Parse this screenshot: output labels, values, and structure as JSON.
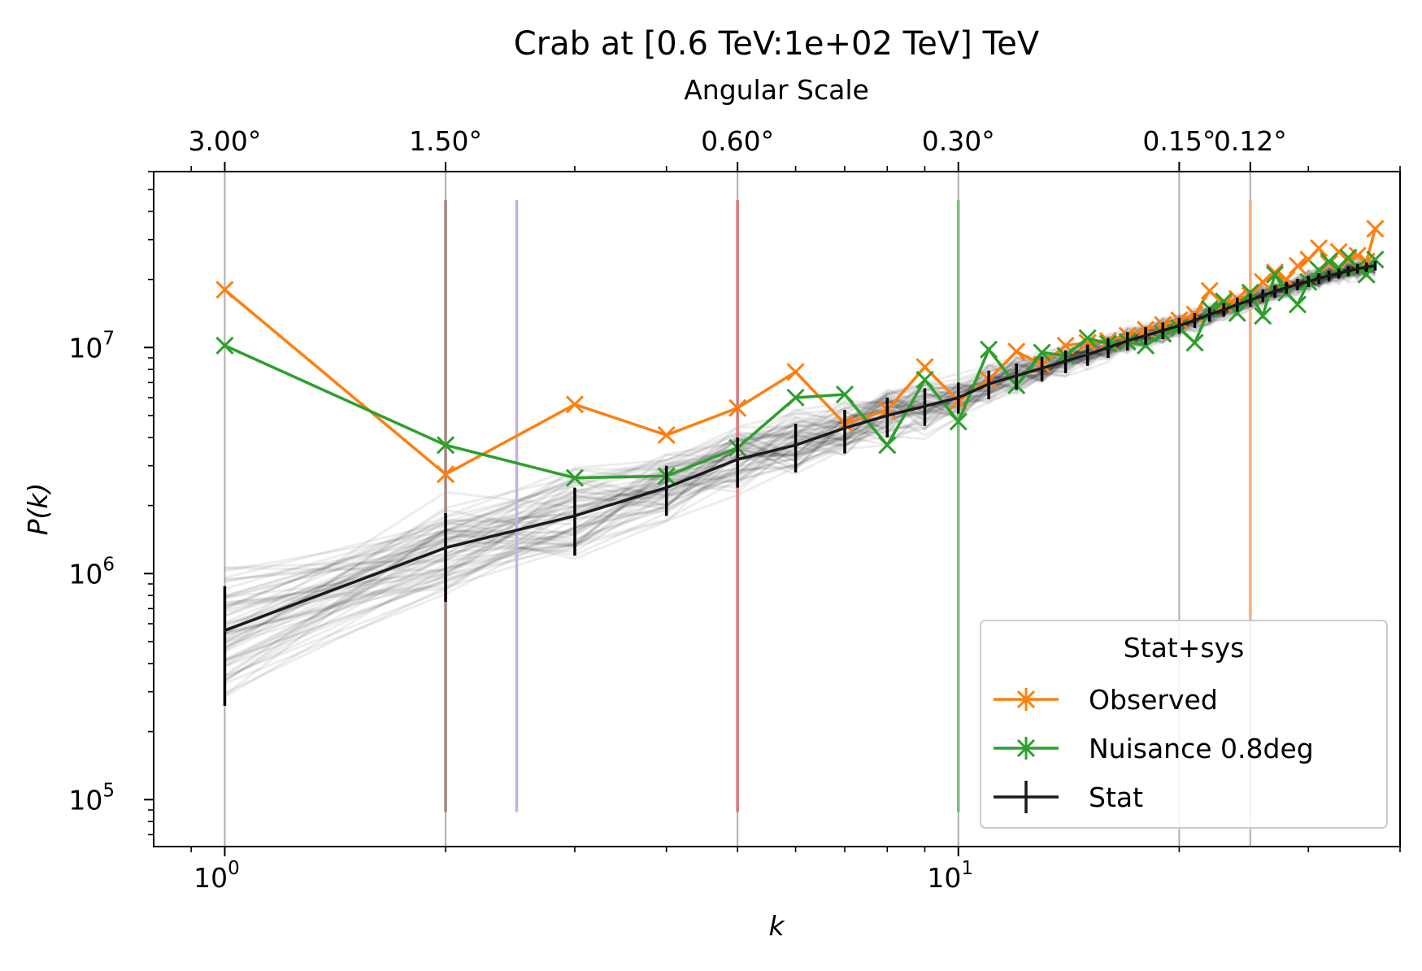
{
  "chart_data": {
    "type": "line",
    "title": "Crab at [0.6 TeV:1e+02 TeV] TeV",
    "xlabel": "k",
    "ylabel": "P(k)",
    "x_scale": "log",
    "y_scale": "log",
    "xlim": [
      0.8,
      40
    ],
    "ylim": [
      62000,
      60000000
    ],
    "x_ticks": [
      {
        "value": 1,
        "base": "10",
        "exp": "0"
      },
      {
        "value": 10,
        "base": "10",
        "exp": "1"
      }
    ],
    "y_ticks": [
      {
        "value": 100000,
        "base": "10",
        "exp": "5"
      },
      {
        "value": 1000000,
        "base": "10",
        "exp": "6"
      },
      {
        "value": 10000000,
        "base": "10",
        "exp": "7"
      }
    ],
    "top_axis": {
      "label": "Angular Scale",
      "ticks": [
        {
          "k": 1,
          "label": "3.00°"
        },
        {
          "k": 2,
          "label": "1.50°"
        },
        {
          "k": 5,
          "label": "0.60°"
        },
        {
          "k": 10,
          "label": "0.30°"
        },
        {
          "k": 20,
          "label": "0.15°"
        },
        {
          "k": 25,
          "label": "0.12°"
        }
      ]
    },
    "vertical_lines": [
      {
        "k": 1,
        "color": "#b0b0b0"
      },
      {
        "k": 2,
        "color": "#b0b0b0"
      },
      {
        "k": 5,
        "color": "#b0b0b0"
      },
      {
        "k": 10,
        "color": "#b0b0b0"
      },
      {
        "k": 20,
        "color": "#b0b0b0"
      },
      {
        "k": 25,
        "color": "#b0b0b0"
      },
      {
        "k": 2,
        "color": "#a1887f",
        "ymin": 88000,
        "ymax": 45000000
      },
      {
        "k": 2.5,
        "color": "#c5b0e0",
        "ymin": 88000,
        "ymax": 45000000
      },
      {
        "k": 5,
        "color": "#d9777a",
        "ymin": 88000,
        "ymax": 45000000
      },
      {
        "k": 10,
        "color": "#7fbf7f",
        "ymin": 88000,
        "ymax": 45000000
      },
      {
        "k": 25,
        "color": "#f4b078",
        "ymin": 88000,
        "ymax": 45000000
      }
    ],
    "legend": {
      "title": "Stat+sys",
      "position": "lower right",
      "entries": [
        {
          "label": "Observed",
          "color": "#ff7f0e",
          "marker": "x"
        },
        {
          "label": "Nuisance 0.8deg",
          "color": "#2ca02c",
          "marker": "x"
        },
        {
          "label": "Stat",
          "color": "#000000",
          "marker": "errorbar"
        }
      ]
    },
    "series": [
      {
        "name": "Observed",
        "color": "#ff7f0e",
        "x": [
          1,
          2,
          3,
          4,
          5,
          6,
          7,
          8,
          9,
          10,
          11,
          12,
          13,
          14,
          15,
          16,
          17,
          18,
          19,
          20,
          21,
          22,
          23,
          24,
          25,
          26,
          27,
          28,
          29,
          30,
          31,
          32,
          33,
          34,
          35,
          36,
          37
        ],
        "values": [
          18000000,
          2750000,
          5600000,
          4100000,
          5400000,
          7800000,
          4600000,
          5300000,
          8200000,
          5800000,
          7200000,
          9600000,
          8400000,
          10200000,
          10500000,
          10700000,
          11300000,
          12000000,
          12600000,
          13200000,
          14000000,
          17800000,
          15600000,
          16400000,
          17000000,
          19500000,
          21500000,
          20000000,
          23000000,
          24500000,
          27500000,
          23500000,
          26500000,
          24500000,
          25500000,
          24000000,
          33500000
        ]
      },
      {
        "name": "Nuisance 0.8deg",
        "color": "#2ca02c",
        "x": [
          1,
          2,
          3,
          4,
          5,
          6,
          7,
          8,
          9,
          10,
          11,
          12,
          13,
          14,
          15,
          16,
          17,
          18,
          19,
          20,
          21,
          22,
          23,
          24,
          25,
          26,
          27,
          28,
          29,
          30,
          31,
          32,
          33,
          34,
          35,
          36,
          37
        ],
        "values": [
          10200000,
          3700000,
          2650000,
          2700000,
          3600000,
          6000000,
          6200000,
          3700000,
          7200000,
          4700000,
          9800000,
          6800000,
          9500000,
          9200000,
          11000000,
          10400000,
          10600000,
          10200000,
          11500000,
          12200000,
          10500000,
          14800000,
          16000000,
          14200000,
          17500000,
          13800000,
          21000000,
          17500000,
          15500000,
          19500000,
          22000000,
          24000000,
          22500000,
          25000000,
          22500000,
          21000000,
          24500000
        ]
      },
      {
        "name": "Stat",
        "color": "#000000",
        "x": [
          1,
          2,
          3,
          4,
          5,
          6,
          7,
          8,
          9,
          10,
          11,
          12,
          13,
          14,
          15,
          16,
          17,
          18,
          19,
          20,
          21,
          22,
          23,
          24,
          25,
          26,
          27,
          28,
          29,
          30,
          31,
          32,
          33,
          34,
          35,
          36,
          37
        ],
        "values": [
          560000,
          1300000,
          1800000,
          2400000,
          3200000,
          3700000,
          4400000,
          5000000,
          5500000,
          6000000,
          6900000,
          7500000,
          8100000,
          8700000,
          9300000,
          10000000,
          10700000,
          11300000,
          11900000,
          12500000,
          13200000,
          14000000,
          14700000,
          15500000,
          16200000,
          17000000,
          17700000,
          18400000,
          19000000,
          19600000,
          20200000,
          20800000,
          21300000,
          21800000,
          22300000,
          22700000,
          23000000
        ],
        "err_low": [
          260000,
          750000,
          1200000,
          1800000,
          2400000,
          2800000,
          3400000,
          4000000,
          4500000,
          5100000,
          5900000,
          6500000,
          7100000,
          7700000,
          8300000,
          9000000,
          9700000,
          10300000,
          10900000,
          11500000,
          12200000,
          13000000,
          13700000,
          14400000,
          15100000,
          15900000,
          16600000,
          17300000,
          17900000,
          18500000,
          19100000,
          19700000,
          20200000,
          20700000,
          21200000,
          21600000,
          21900000
        ],
        "err_high": [
          880000,
          1850000,
          2400000,
          3000000,
          4000000,
          4600000,
          5300000,
          6000000,
          6600000,
          7000000,
          7900000,
          8500000,
          9100000,
          9700000,
          10300000,
          11000000,
          11700000,
          12300000,
          12900000,
          13500000,
          14200000,
          15000000,
          15700000,
          16600000,
          17300000,
          18100000,
          18800000,
          19500000,
          20100000,
          20700000,
          21300000,
          21900000,
          22400000,
          22900000,
          23400000,
          23800000,
          24100000
        ]
      }
    ]
  }
}
